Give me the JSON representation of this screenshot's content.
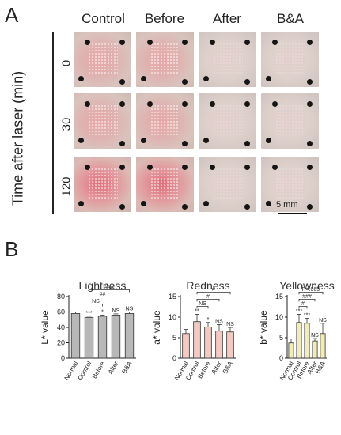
{
  "panel_a": {
    "letter": "A",
    "columns": [
      "Control",
      "Before",
      "After",
      "B&A"
    ],
    "y_title": "Time after laser (min)",
    "rows": [
      "0",
      "30",
      "120"
    ],
    "scale_bar": "5 mm"
  },
  "panel_b": {
    "letter": "B"
  },
  "chart_data": [
    {
      "type": "bar",
      "title": "Lightness",
      "ylabel": "L* value",
      "categories": [
        "Normal",
        "Control",
        "Before",
        "After",
        "B&A"
      ],
      "values": [
        58,
        53,
        54.5,
        56,
        58
      ],
      "errors": [
        2,
        1.5,
        1.5,
        1.5,
        2
      ],
      "ylim": [
        0,
        80
      ],
      "yticks": [
        "0",
        "20",
        "40",
        "60",
        "80"
      ],
      "color": "#b8b8b8",
      "bar_marks": [
        "",
        "***",
        "*",
        "NS",
        "NS"
      ],
      "brackets": [
        {
          "from": 1,
          "to": 2,
          "label": "NS"
        },
        {
          "from": 1,
          "to": 3,
          "label": "##"
        },
        {
          "from": 1,
          "to": 4,
          "label": "###"
        }
      ]
    },
    {
      "type": "bar",
      "title": "Redness",
      "ylabel": "a* value",
      "categories": [
        "Normal",
        "Control",
        "Before",
        "After",
        "B&A"
      ],
      "values": [
        6,
        8.9,
        7.6,
        6.6,
        6.4
      ],
      "errors": [
        1,
        1.8,
        1.1,
        1.6,
        1.1
      ],
      "ylim": [
        0,
        15
      ],
      "yticks": [
        "0",
        "5",
        "10",
        "15"
      ],
      "color": "#f3c9c2",
      "bar_marks": [
        "",
        "**",
        "*",
        "NS",
        "NS"
      ],
      "brackets": [
        {
          "from": 1,
          "to": 2,
          "label": "NS"
        },
        {
          "from": 1,
          "to": 3,
          "label": "#"
        },
        {
          "from": 1,
          "to": 4,
          "label": "#"
        }
      ]
    },
    {
      "type": "bar",
      "title": "Yellowness",
      "ylabel": "b* value",
      "categories": [
        "Normal",
        "Control",
        "Before",
        "After",
        "B&A"
      ],
      "values": [
        3.7,
        8.7,
        8.5,
        4.2,
        6
      ],
      "errors": [
        1,
        2,
        1.2,
        0.6,
        2.5
      ],
      "ylim": [
        0,
        15
      ],
      "yticks": [
        "0",
        "5",
        "10",
        "15"
      ],
      "color": "#f2ecb8",
      "bar_marks": [
        "",
        "***",
        "***",
        "NS",
        "NS"
      ],
      "brackets": [
        {
          "from": 1,
          "to": 2,
          "label": "#"
        },
        {
          "from": 1,
          "to": 3,
          "label": "###"
        },
        {
          "from": 1,
          "to": 4,
          "label": "P=.065"
        }
      ]
    }
  ]
}
